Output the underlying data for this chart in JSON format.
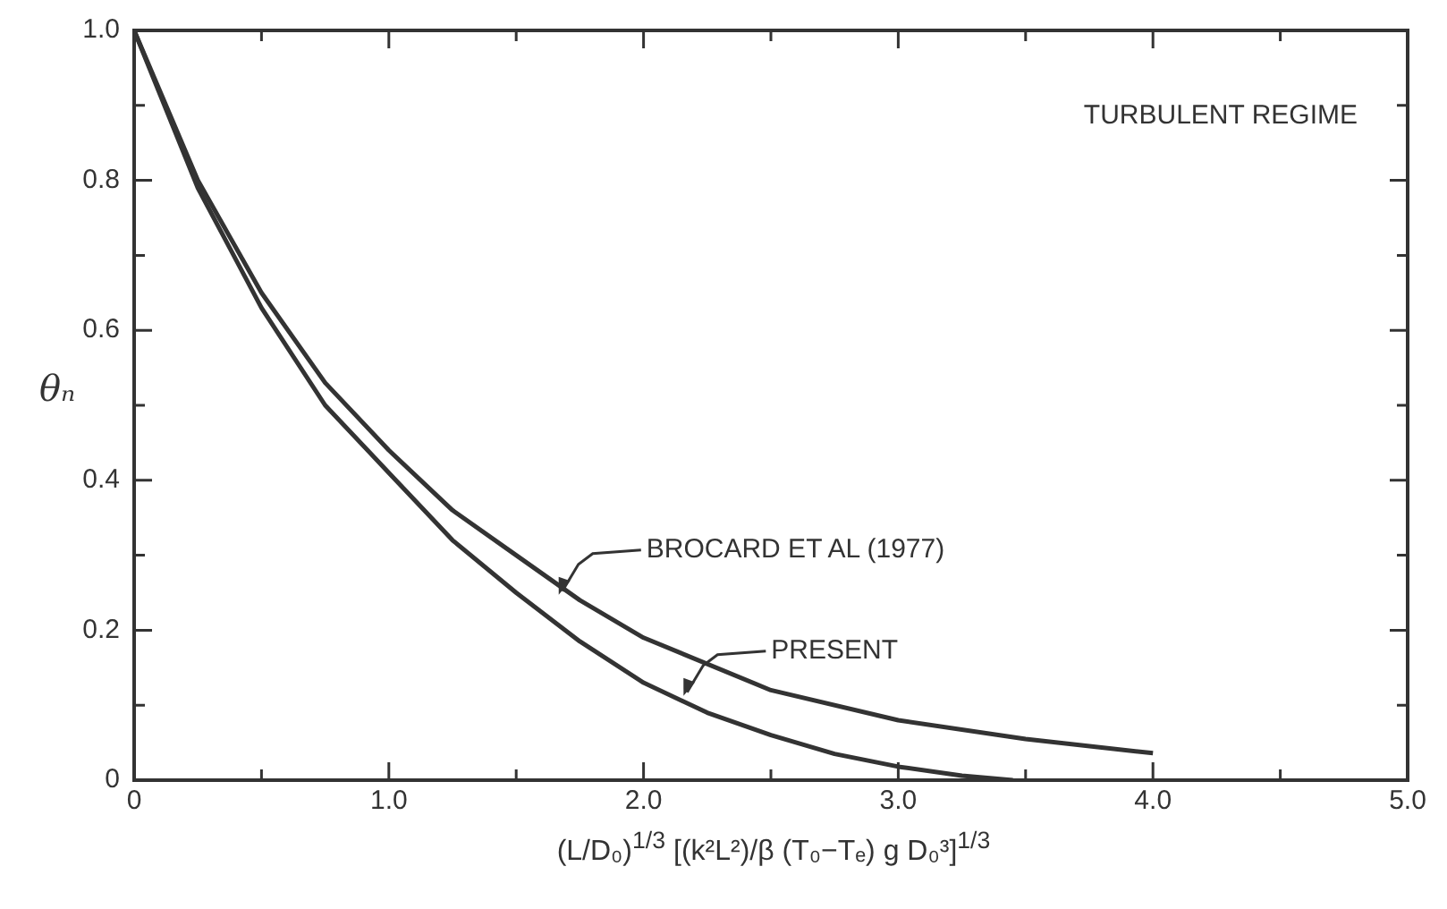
{
  "chart_data": {
    "type": "line",
    "xlabel": "(L/D₀)$^{1/3}$ [(k²L²)/β (T₀−Tₑ) g D₀³]$^{1/3}$",
    "ylabel": "θₙ",
    "xlim": [
      0,
      5
    ],
    "ylim": [
      0,
      1
    ],
    "xticks": [
      0,
      {
        "value": 0.5,
        "label": null
      },
      {
        "value": 1,
        "label": "1.0"
      },
      {
        "value": 1.5,
        "label": null
      },
      {
        "value": 2,
        "label": "2.0"
      },
      {
        "value": 2.5,
        "label": null
      },
      {
        "value": 3,
        "label": "3.0"
      },
      {
        "value": 3.5,
        "label": null
      },
      {
        "value": 4,
        "label": "4.0"
      },
      {
        "value": 4.5,
        "label": null
      },
      {
        "value": 5,
        "label": "5.0"
      }
    ],
    "yticks": [
      0,
      {
        "value": 0.1,
        "label": null
      },
      0.2,
      {
        "value": 0.3,
        "label": null
      },
      0.4,
      {
        "value": 0.5,
        "label": null
      },
      0.6,
      {
        "value": 0.7,
        "label": null
      },
      0.8,
      {
        "value": 0.9,
        "label": null
      },
      {
        "value": 1,
        "label": "1.0"
      }
    ],
    "grid": false,
    "legend": false,
    "series": [
      {
        "color": "#333333",
        "x": [
          0,
          0.25,
          0.5,
          0.75,
          1,
          1.25,
          1.5,
          1.75,
          2,
          2.5,
          3,
          3.5,
          4
        ],
        "values": [
          1,
          0.8,
          0.65,
          0.53,
          0.44,
          0.36,
          0.3,
          0.24,
          0.19,
          0.12,
          0.08,
          0.055,
          0.036
        ]
      },
      {
        "color": "#333333",
        "x": [
          0,
          0.25,
          0.5,
          0.75,
          1,
          1.25,
          1.5,
          1.75,
          2,
          2.25,
          2.5,
          2.75,
          3,
          3.25,
          3.45
        ],
        "values": [
          1,
          0.79,
          0.63,
          0.5,
          0.41,
          0.32,
          0.25,
          0.185,
          0.13,
          0.09,
          0.06,
          0.035,
          0.018,
          0.006,
          0
        ]
      }
    ],
    "annotations": [
      "TURBULENT REGIME",
      {
        "text": "BROCARD ET AL (1977)",
        "x": 1.66,
        "y": 0.245
      },
      {
        "text": "PRESENT",
        "x": 2.15,
        "y": 0.11
      }
    ]
  }
}
